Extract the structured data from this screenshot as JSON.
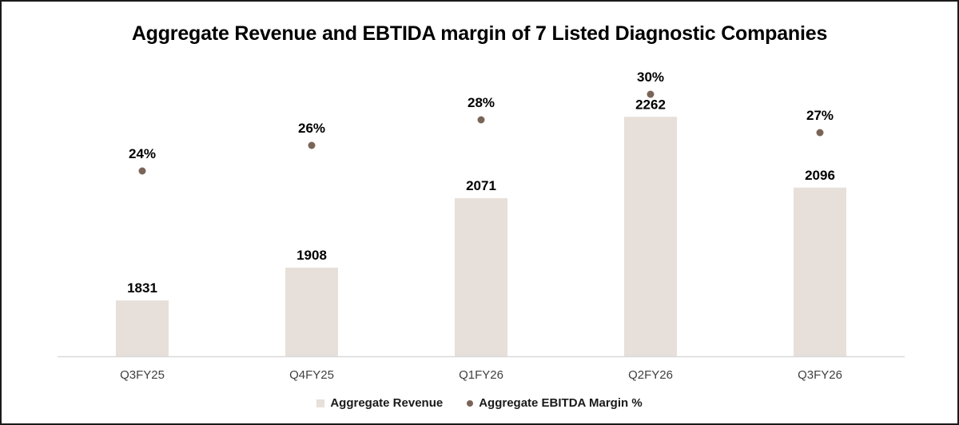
{
  "chart_data": {
    "type": "bar",
    "title": "Aggregate Revenue and EBTIDA margin of 7 Listed Diagnostic Companies",
    "categories": [
      "Q3FY25",
      "Q4FY25",
      "Q1FY26",
      "Q2FY26",
      "Q3FY26"
    ],
    "series": [
      {
        "name": "Aggregate Revenue",
        "type": "bar",
        "values": [
          1831,
          1908,
          2071,
          2262,
          2096
        ],
        "labels": [
          "1831",
          "1908",
          "2071",
          "2262",
          "2096"
        ],
        "color": "#e7dfd9"
      },
      {
        "name": "Aggregate EBITDA Margin %",
        "type": "scatter",
        "values": [
          24,
          26,
          28,
          30,
          27
        ],
        "labels": [
          "24%",
          "26%",
          "28%",
          "30%",
          "27%"
        ],
        "color": "#7a6458"
      }
    ],
    "bar_axis_range": [
      1700,
      2300
    ],
    "margin_axis_range": [
      10,
      32
    ],
    "grid": false,
    "legend_position": "bottom",
    "axis_line_color": "#d9d9d9"
  }
}
